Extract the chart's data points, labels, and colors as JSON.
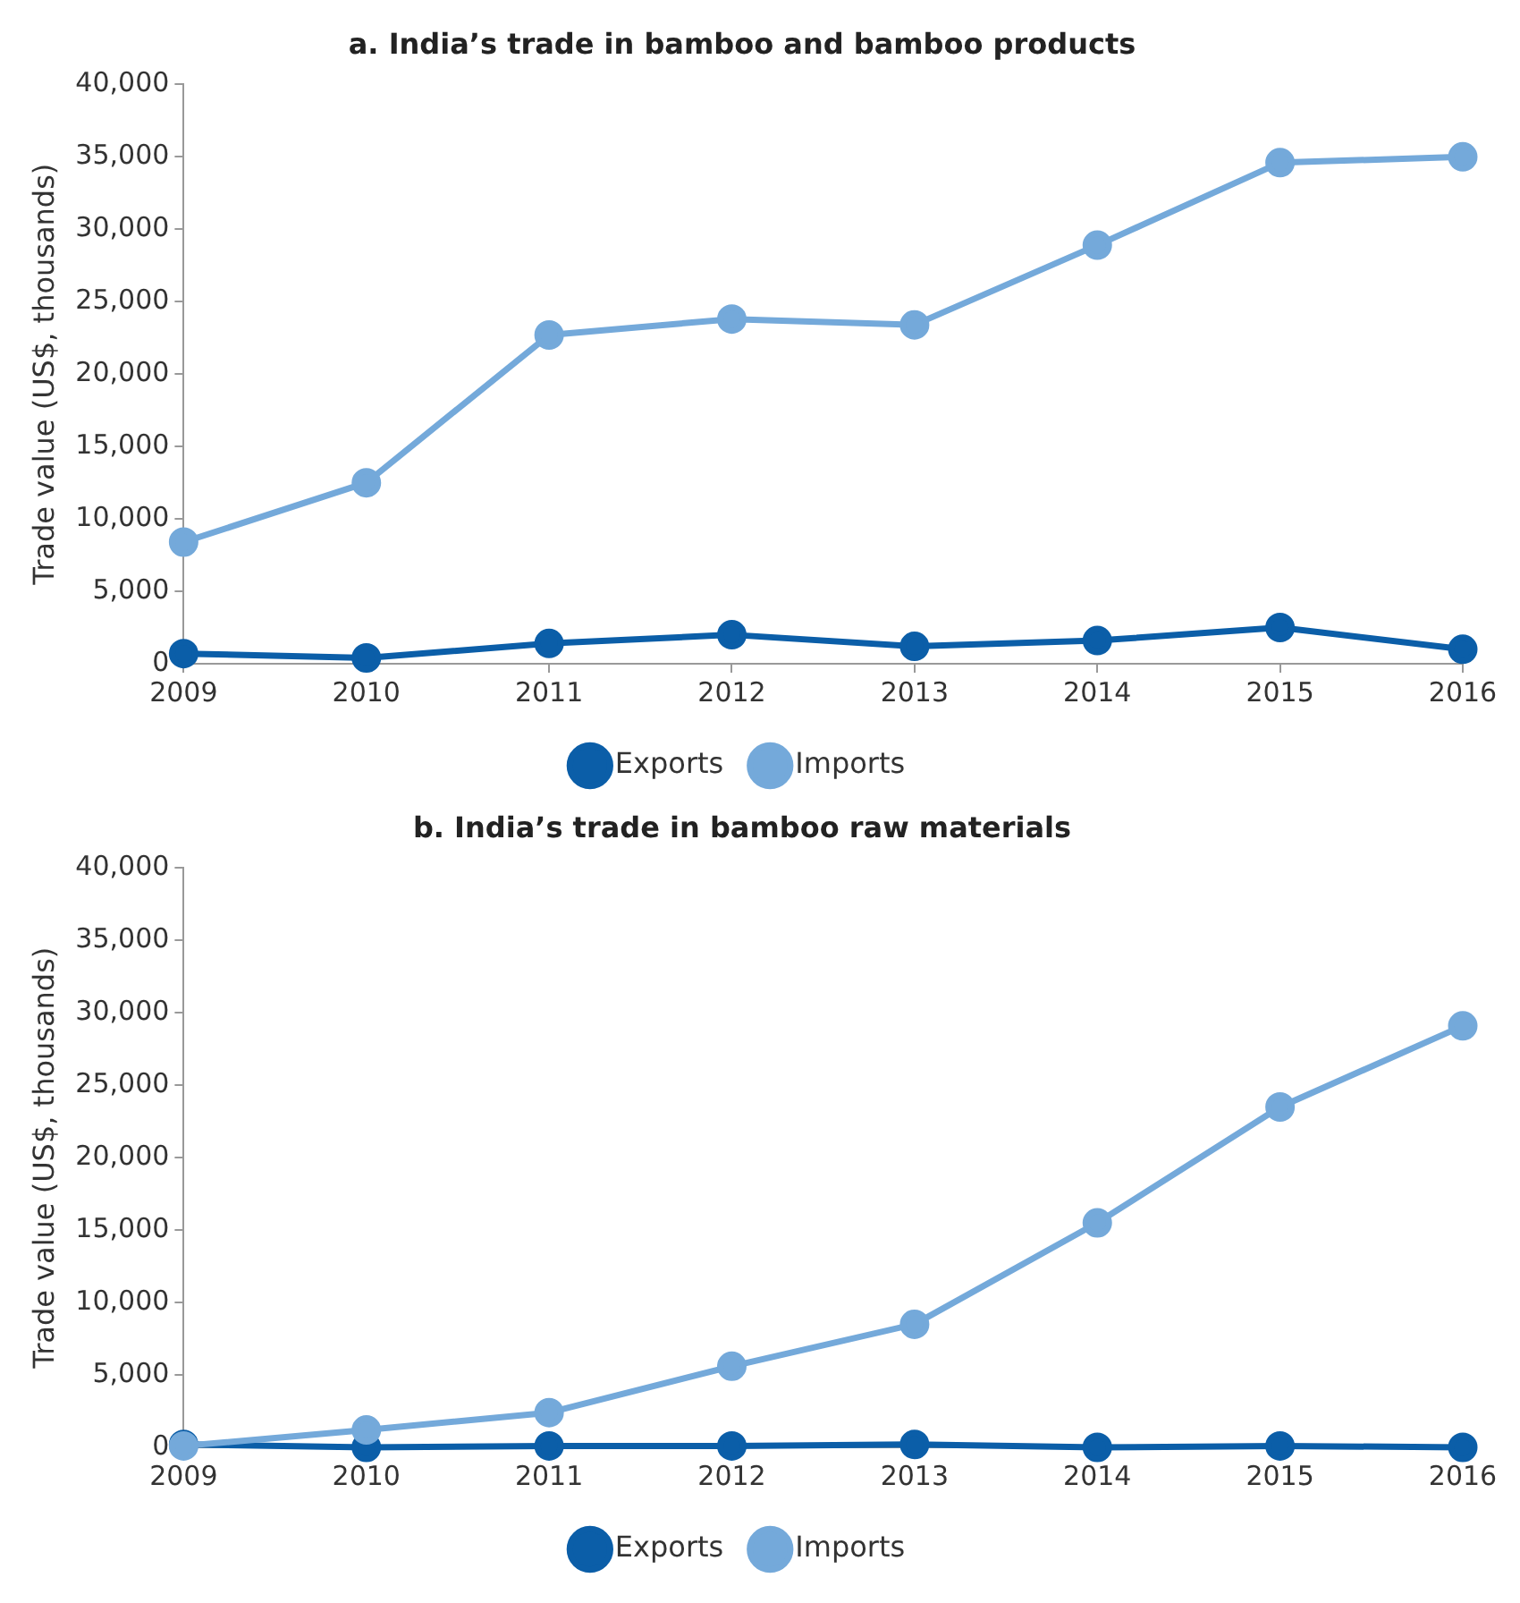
{
  "chart_data": [
    {
      "type": "line",
      "title": "a. India’s trade in bamboo and bamboo products",
      "ylabel": "Trade value (US$, thousands)",
      "x": [
        2009,
        2010,
        2011,
        2012,
        2013,
        2014,
        2015,
        2016
      ],
      "xlim": [
        2009,
        2016
      ],
      "xticks": [
        2009,
        2010,
        2011,
        2012,
        2013,
        2014,
        2015,
        2016
      ],
      "ylim": [
        0,
        40000
      ],
      "yticks": [
        0,
        {
          "value": 5000,
          "label": "5,000"
        },
        {
          "value": 10000,
          "label": "10,000"
        },
        {
          "value": 15000,
          "label": "15,000"
        },
        {
          "value": 20000,
          "label": "20,000"
        },
        {
          "value": 25000,
          "label": "25,000"
        },
        {
          "value": 30000,
          "label": "30,000"
        },
        {
          "value": 35000,
          "label": "35,000"
        },
        {
          "value": 40000,
          "label": "40,000"
        }
      ],
      "legend": "bottom",
      "marker": "circle",
      "line_style": "solid",
      "series": [
        {
          "name": "Exports",
          "color": "#0b5ea8",
          "values": [
            700,
            400,
            1400,
            2000,
            1200,
            1600,
            2500,
            1000
          ]
        },
        {
          "name": "Imports",
          "color": "#74a9da",
          "values": [
            8400,
            12500,
            22700,
            23800,
            23400,
            28900,
            34600,
            35000
          ]
        }
      ]
    },
    {
      "type": "line",
      "title": "b. India’s trade in bamboo raw materials",
      "ylabel": "Trade value (US$, thousands)",
      "x": [
        2009,
        2010,
        2011,
        2012,
        2013,
        2014,
        2015,
        2016
      ],
      "xlim": [
        2009,
        2016
      ],
      "xticks": [
        2009,
        2010,
        2011,
        2012,
        2013,
        2014,
        2015,
        2016
      ],
      "ylim": [
        0,
        40000
      ],
      "yticks": [
        0,
        {
          "value": 5000,
          "label": "5,000"
        },
        {
          "value": 10000,
          "label": "10,000"
        },
        {
          "value": 15000,
          "label": "15,000"
        },
        {
          "value": 20000,
          "label": "20,000"
        },
        {
          "value": 25000,
          "label": "25,000"
        },
        {
          "value": 30000,
          "label": "30,000"
        },
        {
          "value": 35000,
          "label": "35,000"
        },
        {
          "value": 40000,
          "label": "40,000"
        }
      ],
      "legend": "bottom",
      "marker": "circle",
      "line_style": "solid",
      "series": [
        {
          "name": "Exports",
          "color": "#0b5ea8",
          "values": [
            200,
            0,
            100,
            100,
            200,
            0,
            100,
            0
          ]
        },
        {
          "name": "Imports",
          "color": "#74a9da",
          "values": [
            100,
            1200,
            2400,
            5600,
            8500,
            15500,
            23500,
            29100
          ]
        }
      ]
    }
  ]
}
